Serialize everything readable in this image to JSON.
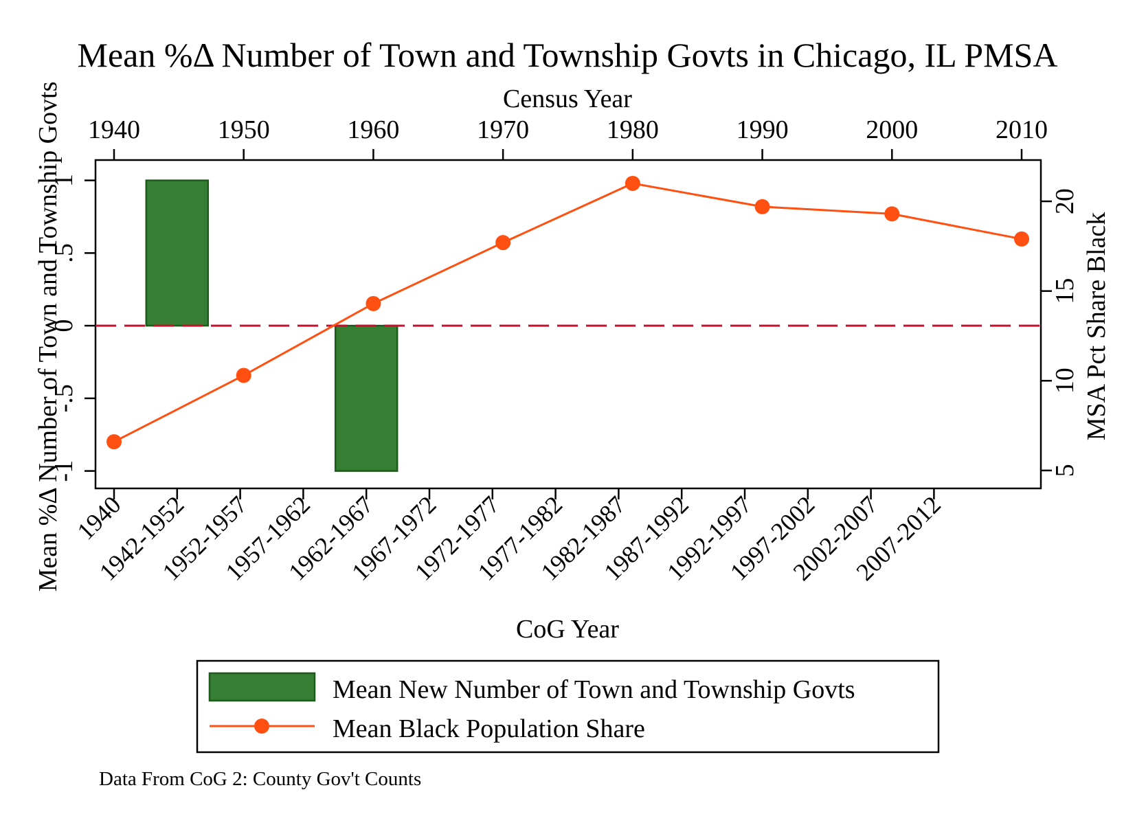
{
  "chart_data": {
    "type": "bar",
    "title": "Mean %Δ Number of Town and Township Govts in Chicago, IL PMSA",
    "top_axis": {
      "label": "Census Year",
      "ticks": [
        "1940",
        "1950",
        "1960",
        "1970",
        "1980",
        "1990",
        "2000",
        "2010"
      ]
    },
    "bottom_axis": {
      "label": "CoG Year",
      "categories": [
        "1940",
        "1942-1952",
        "1952-1957",
        "1957-1962",
        "1962-1967",
        "1967-1972",
        "1972-1977",
        "1977-1982",
        "1982-1987",
        "1987-1992",
        "1992-1997",
        "1997-2002",
        "2002-2007",
        "2007-2012"
      ]
    },
    "left_axis": {
      "label": "Mean %Δ Number of Town and Township Govts",
      "ticks": [
        "-1",
        "-.5",
        "0",
        ".5",
        "1"
      ],
      "range": [
        -1.12,
        1.14
      ]
    },
    "right_axis": {
      "label": "MSA Pct Share Black",
      "ticks": [
        "5",
        "10",
        "15",
        "20"
      ],
      "range": [
        4.0,
        22.3
      ]
    },
    "reference_line": {
      "y": 0,
      "color": "#C8102E",
      "style": "dashed"
    },
    "series": [
      {
        "name": "Mean New Number of Town and Township Govts",
        "type": "bar",
        "color": "#367E34",
        "axis": "left",
        "points": [
          {
            "category": "1942-1952",
            "value": 1
          },
          {
            "category": "1962-1967",
            "value": -1
          }
        ]
      },
      {
        "name": "Mean Black Population Share",
        "type": "line",
        "color": "#FF5011",
        "axis": "right",
        "x": [
          1940,
          1950,
          1960,
          1970,
          1980,
          1990,
          2000,
          2010
        ],
        "values": [
          6.6,
          10.3,
          14.3,
          17.7,
          21.0,
          19.7,
          19.3,
          17.9
        ]
      }
    ],
    "legend_position": "bottom",
    "note": "Data From CoG 2: County Gov't Counts"
  }
}
